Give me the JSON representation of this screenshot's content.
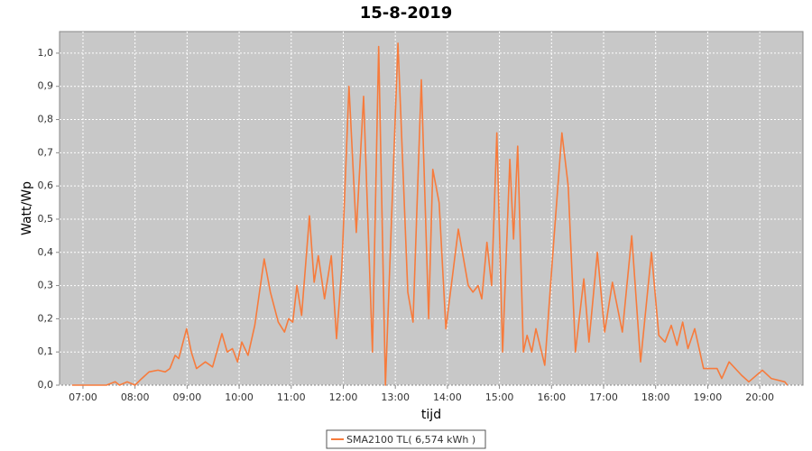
{
  "chart_data": {
    "type": "line",
    "title": "15-8-2019",
    "x_label": "tijd",
    "y_label": "Watt/Wp",
    "xlim": [
      6.55,
      20.83
    ],
    "ylim": [
      0,
      1.065
    ],
    "xticks": [
      {
        "value": 7,
        "label": "07:00"
      },
      {
        "value": 8,
        "label": "08:00"
      },
      {
        "value": 9,
        "label": "09:00"
      },
      {
        "value": 10,
        "label": "10:00"
      },
      {
        "value": 11,
        "label": "11:00"
      },
      {
        "value": 12,
        "label": "12:00"
      },
      {
        "value": 13,
        "label": "13:00"
      },
      {
        "value": 14,
        "label": "14:00"
      },
      {
        "value": 15,
        "label": "15:00"
      },
      {
        "value": 16,
        "label": "16:00"
      },
      {
        "value": 17,
        "label": "17:00"
      },
      {
        "value": 18,
        "label": "18:00"
      },
      {
        "value": 19,
        "label": "19:00"
      },
      {
        "value": 20,
        "label": "20:00"
      }
    ],
    "yticks": [
      {
        "value": 0,
        "label": "0,0"
      },
      {
        "value": 0.1,
        "label": "0,1"
      },
      {
        "value": 0.2,
        "label": "0,2"
      },
      {
        "value": 0.3,
        "label": "0,3"
      },
      {
        "value": 0.4,
        "label": "0,4"
      },
      {
        "value": 0.5,
        "label": "0,5"
      },
      {
        "value": 0.6,
        "label": "0,6"
      },
      {
        "value": 0.7,
        "label": "0,7"
      },
      {
        "value": 0.8,
        "label": "0,8"
      },
      {
        "value": 0.9,
        "label": "0,9"
      },
      {
        "value": 1.0,
        "label": "1,0"
      }
    ],
    "grid": true,
    "legend": "bottom",
    "x": [
      6.79,
      7.45,
      7.62,
      7.7,
      7.85,
      8.0,
      8.13,
      8.27,
      8.44,
      8.58,
      8.67,
      8.77,
      8.84,
      8.99,
      9.08,
      9.18,
      9.35,
      9.49,
      9.67,
      9.77,
      9.87,
      9.97,
      10.05,
      10.17,
      10.3,
      10.48,
      10.6,
      10.75,
      10.87,
      10.95,
      11.03,
      11.11,
      11.2,
      11.35,
      11.44,
      11.52,
      11.64,
      11.77,
      11.87,
      11.97,
      12.11,
      12.25,
      12.39,
      12.56,
      12.68,
      12.81,
      13.05,
      13.24,
      13.34,
      13.5,
      13.64,
      13.72,
      13.84,
      13.97,
      14.21,
      14.4,
      14.49,
      14.59,
      14.66,
      14.76,
      14.85,
      14.95,
      15.06,
      15.2,
      15.27,
      15.35,
      15.46,
      15.53,
      15.62,
      15.7,
      15.87,
      16.05,
      16.2,
      16.32,
      16.46,
      16.62,
      16.72,
      16.88,
      17.02,
      17.17,
      17.36,
      17.54,
      17.71,
      17.92,
      18.06,
      18.18,
      18.3,
      18.41,
      18.52,
      18.62,
      18.75,
      18.92,
      19.18,
      19.27,
      19.41,
      19.65,
      19.79,
      20.05,
      20.22,
      20.48,
      20.53
    ],
    "series": [
      {
        "name": "SMA2100 TL( 6,574 kWh )",
        "color": "#f77b3c",
        "values": [
          0,
          0,
          0.01,
          0,
          0.01,
          0,
          0.02,
          0.04,
          0.045,
          0.04,
          0.05,
          0.09,
          0.08,
          0.17,
          0.1,
          0.05,
          0.07,
          0.055,
          0.155,
          0.1,
          0.11,
          0.07,
          0.13,
          0.09,
          0.18,
          0.38,
          0.28,
          0.19,
          0.16,
          0.2,
          0.19,
          0.3,
          0.21,
          0.51,
          0.31,
          0.39,
          0.26,
          0.39,
          0.14,
          0.35,
          0.9,
          0.46,
          0.87,
          0.1,
          1.02,
          0.0,
          1.03,
          0.28,
          0.19,
          0.92,
          0.2,
          0.65,
          0.55,
          0.17,
          0.47,
          0.3,
          0.28,
          0.3,
          0.26,
          0.43,
          0.3,
          0.76,
          0.1,
          0.68,
          0.44,
          0.72,
          0.1,
          0.15,
          0.1,
          0.17,
          0.06,
          0.45,
          0.76,
          0.6,
          0.1,
          0.32,
          0.13,
          0.4,
          0.16,
          0.31,
          0.16,
          0.45,
          0.07,
          0.4,
          0.15,
          0.13,
          0.18,
          0.12,
          0.19,
          0.11,
          0.17,
          0.05,
          0.05,
          0.02,
          0.07,
          0.03,
          0.01,
          0.045,
          0.02,
          0.01,
          0
        ]
      }
    ]
  }
}
